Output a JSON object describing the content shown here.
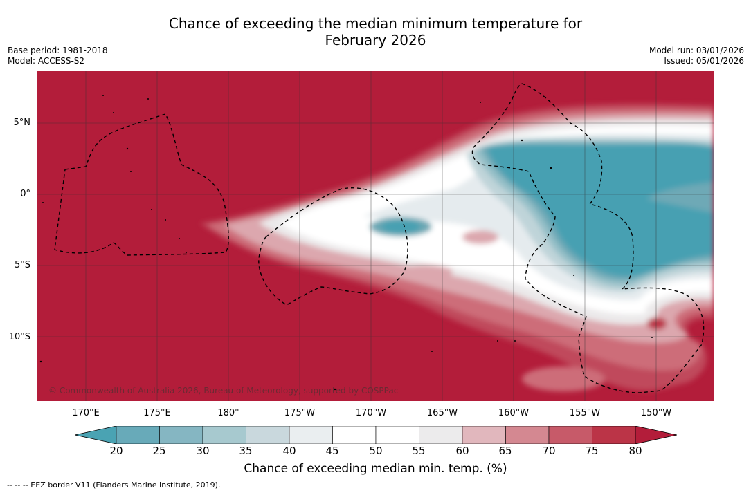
{
  "title_line1": "Chance of exceeding the median minimum temperature for",
  "title_line2": "February 2026",
  "base_period": "Base period: 1981-2018",
  "model": "Model: ACCESS-S2",
  "model_run": "Model run: 03/01/2026",
  "issued": "Issued: 05/01/2026",
  "lat_labels": [
    "5°N",
    "0°",
    "5°S",
    "10°S"
  ],
  "lon_labels": [
    "170°E",
    "175°E",
    "180°",
    "175°W",
    "170°W",
    "165°W",
    "160°W",
    "155°W",
    "150°W"
  ],
  "copyright": "© Commonwealth of Australia 2026, Bureau of Meteorology, supported by COSPPac",
  "colorbar": {
    "ticks": [
      "20",
      "25",
      "30",
      "35",
      "40",
      "45",
      "50",
      "55",
      "60",
      "65",
      "70",
      "75",
      "80"
    ],
    "colors": [
      "#68aab9",
      "#85b6c2",
      "#a7c9cf",
      "#c9d8dd",
      "#eaeef0",
      "#ffffff",
      "#ffffff",
      "#ecebec",
      "#e1b7bd",
      "#d48891",
      "#c75a69",
      "#bb3447"
    ],
    "low_color": "#4aa3b3",
    "high_color": "#b31d3a",
    "label": "Chance of exceeding median min. temp. (%)"
  },
  "footnote": "--  --  -- EEZ border V11 (Flanders Marine Institute, 2019)."
}
